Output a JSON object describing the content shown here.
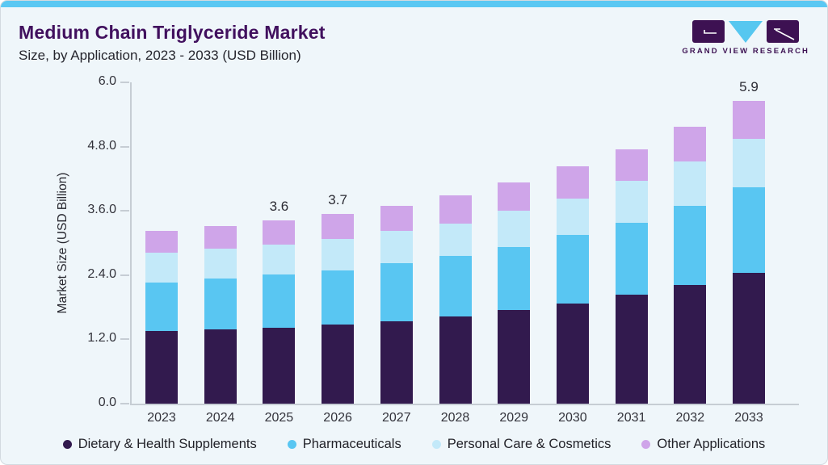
{
  "header": {
    "title": "Medium Chain Triglyceride Market",
    "subtitle": "Size, by Application, 2023 - 2033 (USD Billion)"
  },
  "logo": {
    "brand": "GRAND VIEW RESEARCH",
    "mark_letters": "GVR"
  },
  "colors": {
    "card_background": "#eff6fa",
    "top_border": "#5ac8f3",
    "title_purple": "#41105e",
    "logo_purple": "#3d1152",
    "logo_triangle": "#56c7f0",
    "axis_gray": "#c6cdd4",
    "text_dark": "#26262e"
  },
  "chart_data": {
    "type": "bar",
    "stacked": true,
    "title": "Medium Chain Triglyceride Market Size, by Application, 2023 - 2033 (USD Billion)",
    "categories": [
      "2023",
      "2024",
      "2025",
      "2026",
      "2027",
      "2028",
      "2029",
      "2030",
      "2031",
      "2032",
      "2033"
    ],
    "series": [
      {
        "name": "Dietary & Health Supplements",
        "color": "#321a4e",
        "values": [
          1.42,
          1.45,
          1.48,
          1.54,
          1.6,
          1.7,
          1.82,
          1.95,
          2.12,
          2.31,
          2.55
        ]
      },
      {
        "name": "Pharmaceuticals",
        "color": "#59c6f2",
        "values": [
          0.94,
          0.99,
          1.04,
          1.05,
          1.14,
          1.18,
          1.23,
          1.34,
          1.4,
          1.54,
          1.66
        ]
      },
      {
        "name": "Personal Care & Cosmetics",
        "color": "#c3e9f9",
        "values": [
          0.58,
          0.58,
          0.58,
          0.62,
          0.63,
          0.63,
          0.71,
          0.7,
          0.82,
          0.87,
          0.95
        ]
      },
      {
        "name": "Other Applications",
        "color": "#cfa5e9",
        "values": [
          0.43,
          0.44,
          0.47,
          0.49,
          0.48,
          0.55,
          0.55,
          0.63,
          0.61,
          0.67,
          0.74
        ]
      }
    ],
    "totals": [
      3.37,
      3.46,
      3.57,
      3.7,
      3.85,
      4.06,
      4.31,
      4.62,
      4.95,
      5.39,
      5.9
    ],
    "bar_total_labels": [
      "",
      "",
      "3.6",
      "3.7",
      "",
      "",
      "",
      "",
      "",
      "",
      "5.9"
    ],
    "ylabel": "Market Size (USD Billion)",
    "ytick_labels": [
      "0.0",
      "1.2.0",
      "2.4.0",
      "3.6.0",
      "4.8.0",
      "6.0"
    ],
    "ylim": [
      0,
      6
    ],
    "grid": false,
    "legend_position": "bottom"
  }
}
